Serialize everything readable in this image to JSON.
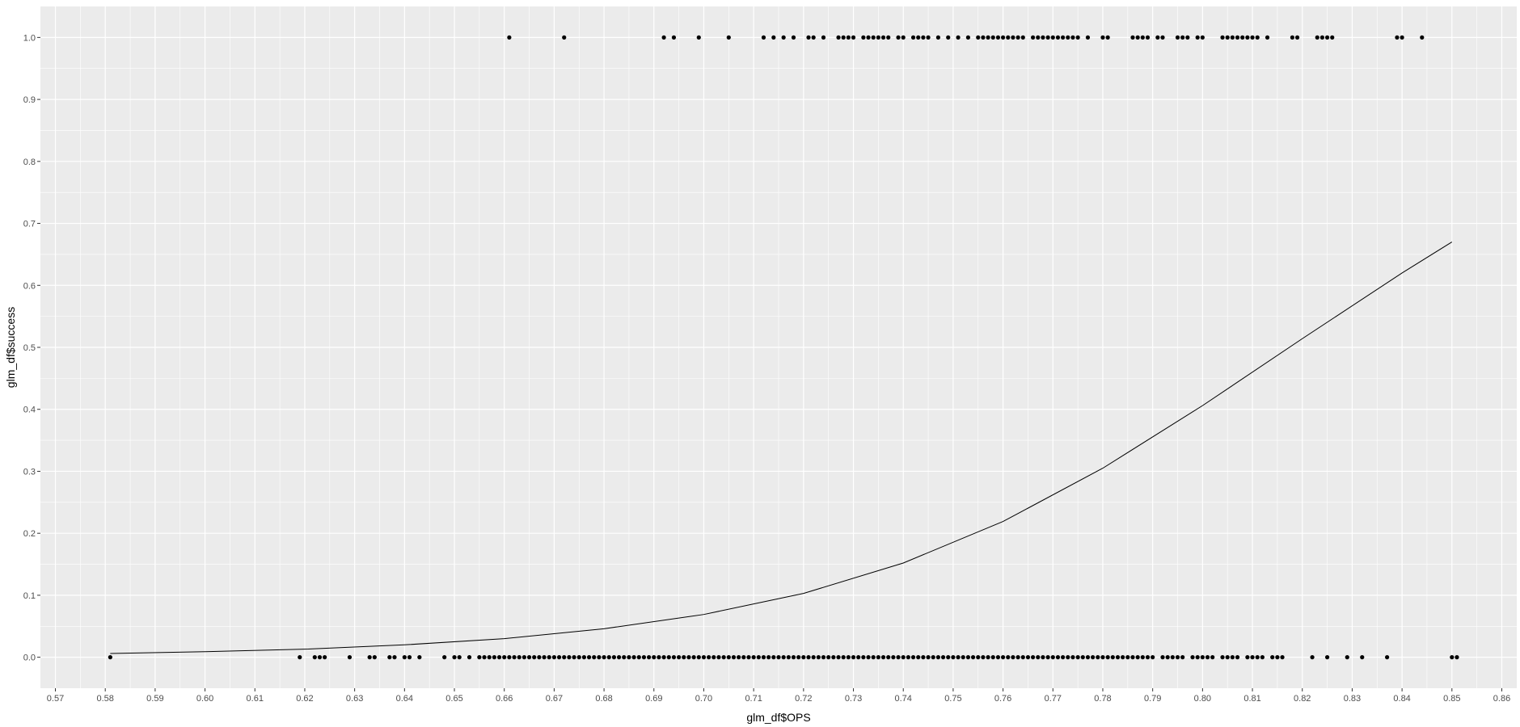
{
  "chart_data": {
    "type": "scatter",
    "xlabel": "glm_df$OPS",
    "ylabel": "glm_df$success",
    "xlim": [
      0.567,
      0.863
    ],
    "ylim": [
      -0.05,
      1.05
    ],
    "x_ticks": [
      "0.57",
      "0.58",
      "0.59",
      "0.60",
      "0.61",
      "0.62",
      "0.63",
      "0.64",
      "0.65",
      "0.66",
      "0.67",
      "0.68",
      "0.69",
      "0.70",
      "0.71",
      "0.72",
      "0.73",
      "0.74",
      "0.75",
      "0.76",
      "0.77",
      "0.78",
      "0.79",
      "0.80",
      "0.81",
      "0.82",
      "0.83",
      "0.84",
      "0.85",
      "0.86"
    ],
    "y_ticks": [
      "0.0",
      "0.1",
      "0.2",
      "0.3",
      "0.4",
      "0.5",
      "0.6",
      "0.7",
      "0.8",
      "0.9",
      "1.0"
    ],
    "grid": true,
    "panel_background": "#ebebeb",
    "grid_color": "#ffffff",
    "point_color": "#000000",
    "line_color": "#000000",
    "series": [
      {
        "type": "scatter",
        "y": 1.0,
        "x": [
          0.661,
          0.672,
          0.692,
          0.694,
          0.699,
          0.705,
          0.712,
          0.714,
          0.716,
          0.718,
          0.721,
          0.722,
          0.724,
          0.727,
          0.728,
          0.729,
          0.73,
          0.732,
          0.733,
          0.734,
          0.735,
          0.736,
          0.737,
          0.739,
          0.74,
          0.742,
          0.743,
          0.744,
          0.745,
          0.747,
          0.749,
          0.751,
          0.753,
          0.755,
          0.756,
          0.757,
          0.758,
          0.759,
          0.76,
          0.761,
          0.762,
          0.763,
          0.764,
          0.766,
          0.767,
          0.768,
          0.769,
          0.77,
          0.771,
          0.772,
          0.773,
          0.774,
          0.775,
          0.777,
          0.78,
          0.781,
          0.786,
          0.787,
          0.788,
          0.789,
          0.791,
          0.792,
          0.795,
          0.796,
          0.797,
          0.799,
          0.8,
          0.804,
          0.805,
          0.806,
          0.807,
          0.808,
          0.809,
          0.81,
          0.811,
          0.813,
          0.818,
          0.819,
          0.823,
          0.824,
          0.825,
          0.826,
          0.839,
          0.84,
          0.844
        ]
      },
      {
        "type": "scatter",
        "y": 0.0,
        "x": [
          0.581,
          0.619,
          0.622,
          0.623,
          0.624,
          0.629,
          0.633,
          0.634,
          0.637,
          0.638,
          0.64,
          0.641,
          0.643,
          0.648,
          0.65,
          0.651,
          0.653,
          0.655,
          0.656,
          0.657,
          0.658,
          0.659,
          0.66,
          0.661,
          0.662,
          0.663,
          0.664,
          0.665,
          0.666,
          0.667,
          0.668,
          0.669,
          0.67,
          0.671,
          0.672,
          0.673,
          0.674,
          0.675,
          0.676,
          0.677,
          0.678,
          0.679,
          0.68,
          0.681,
          0.682,
          0.683,
          0.684,
          0.685,
          0.686,
          0.687,
          0.688,
          0.689,
          0.69,
          0.691,
          0.692,
          0.693,
          0.694,
          0.695,
          0.696,
          0.697,
          0.698,
          0.699,
          0.7,
          0.701,
          0.702,
          0.703,
          0.704,
          0.705,
          0.706,
          0.707,
          0.708,
          0.709,
          0.71,
          0.711,
          0.712,
          0.713,
          0.714,
          0.715,
          0.716,
          0.717,
          0.718,
          0.719,
          0.72,
          0.721,
          0.722,
          0.723,
          0.724,
          0.725,
          0.726,
          0.727,
          0.728,
          0.729,
          0.73,
          0.731,
          0.732,
          0.733,
          0.734,
          0.735,
          0.736,
          0.737,
          0.738,
          0.739,
          0.74,
          0.741,
          0.742,
          0.743,
          0.744,
          0.745,
          0.746,
          0.747,
          0.748,
          0.749,
          0.75,
          0.751,
          0.752,
          0.753,
          0.754,
          0.755,
          0.756,
          0.757,
          0.758,
          0.759,
          0.76,
          0.761,
          0.762,
          0.763,
          0.764,
          0.765,
          0.766,
          0.767,
          0.768,
          0.769,
          0.77,
          0.771,
          0.772,
          0.773,
          0.774,
          0.775,
          0.776,
          0.777,
          0.778,
          0.779,
          0.78,
          0.781,
          0.782,
          0.783,
          0.784,
          0.785,
          0.786,
          0.787,
          0.788,
          0.789,
          0.79,
          0.792,
          0.793,
          0.794,
          0.795,
          0.796,
          0.798,
          0.799,
          0.8,
          0.801,
          0.802,
          0.804,
          0.805,
          0.806,
          0.807,
          0.809,
          0.81,
          0.811,
          0.812,
          0.814,
          0.815,
          0.816,
          0.822,
          0.825,
          0.829,
          0.832,
          0.837,
          0.85,
          0.851
        ]
      },
      {
        "type": "line",
        "description": "logistic fit",
        "x": [
          0.581,
          0.6,
          0.62,
          0.64,
          0.66,
          0.68,
          0.7,
          0.72,
          0.74,
          0.76,
          0.78,
          0.8,
          0.82,
          0.84,
          0.85
        ],
        "y": [
          0.006,
          0.009,
          0.013,
          0.02,
          0.03,
          0.046,
          0.069,
          0.103,
          0.152,
          0.219,
          0.305,
          0.406,
          0.514,
          0.62,
          0.67
        ]
      }
    ]
  }
}
